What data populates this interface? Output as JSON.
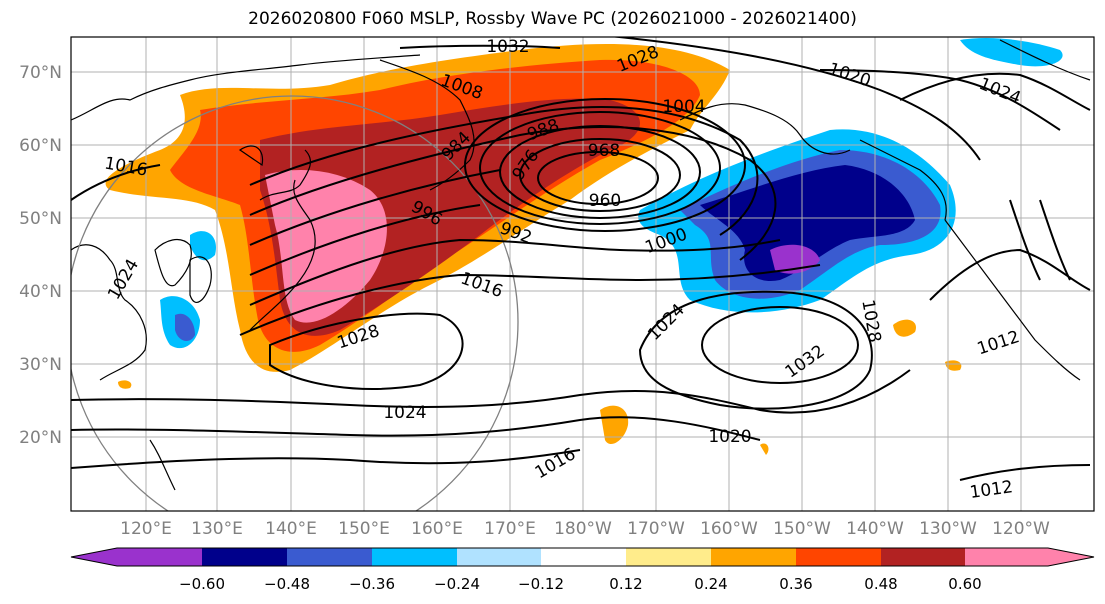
{
  "title": "2026020800 F060 MSLP, Rossby Wave PC (2026021000 - 2026021400)",
  "map": {
    "lat_ticks": [
      "70°N",
      "60°N",
      "50°N",
      "40°N",
      "30°N",
      "20°N"
    ],
    "lon_ticks": [
      "120°E",
      "130°E",
      "140°E",
      "150°E",
      "160°E",
      "170°E",
      "180°W",
      "170°W",
      "160°W",
      "150°W",
      "140°W",
      "130°W",
      "120°W"
    ],
    "contour_labels": [
      "1032",
      "1028",
      "1008",
      "1004",
      "1020",
      "1024",
      "1016",
      "968",
      "988",
      "976",
      "984",
      "960",
      "996",
      "992",
      "1000",
      "1016",
      "1024",
      "1028",
      "1032",
      "1024",
      "1012",
      "1020",
      "1016",
      "1012",
      "1024",
      "1028"
    ]
  },
  "colorbar": {
    "ticks": [
      "−0.60",
      "−0.48",
      "−0.36",
      "−0.24",
      "−0.12",
      "0.12",
      "0.24",
      "0.36",
      "0.48",
      "0.60"
    ],
    "colors": [
      "#9a32cd",
      "#00008b",
      "#3a5bd0",
      "#00bfff",
      "#b0e2ff",
      "#ffffff",
      "#ffec8b",
      "#ffa500",
      "#ff4500",
      "#b22222",
      "#ff82ab"
    ]
  }
}
